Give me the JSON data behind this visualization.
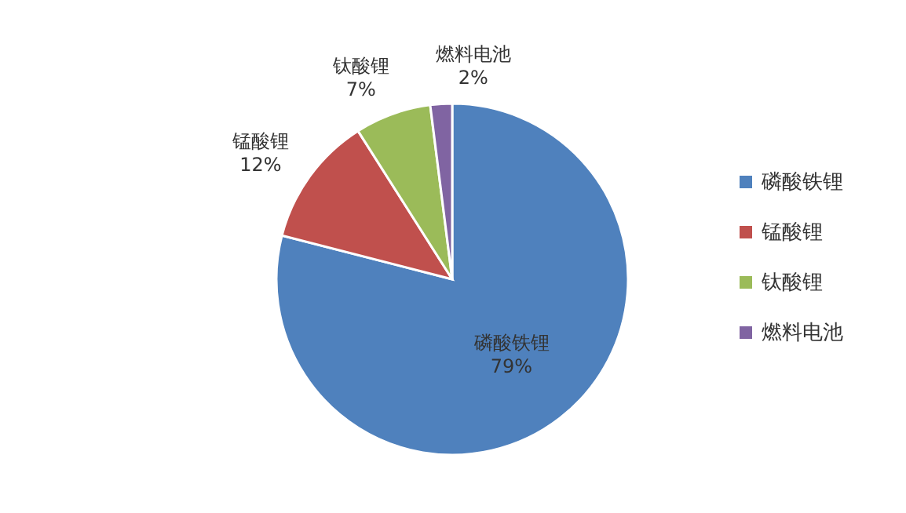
{
  "chart_data": {
    "type": "pie",
    "categories": [
      "磷酸铁锂",
      "锰酸锂",
      "钛酸锂",
      "燃料电池"
    ],
    "values": [
      79,
      12,
      7,
      2
    ],
    "value_labels": [
      "79%",
      "12%",
      "7%",
      "2%"
    ],
    "colors": [
      "#4f81bd",
      "#c0504d",
      "#9bbb59",
      "#8064a2"
    ],
    "legend": "right"
  }
}
